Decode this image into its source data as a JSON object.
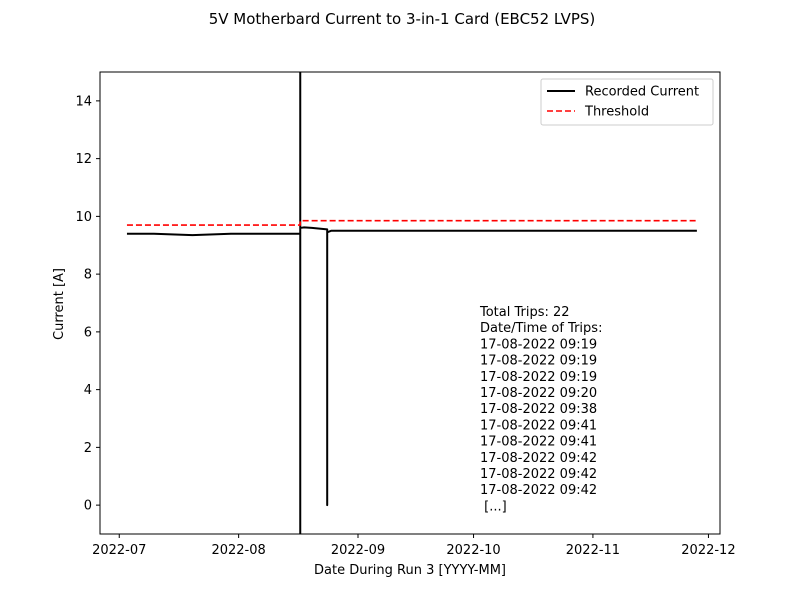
{
  "chart_data": {
    "type": "line",
    "title": "5V Motherbard Current to 3-in-1 Card (EBC52 LVPS)",
    "xlabel": "Date During Run 3 [YYYY-MM]",
    "ylabel": "Current [A]",
    "xlim": [
      "2022-06-26",
      "2022-12-04"
    ],
    "ylim": [
      -1,
      15
    ],
    "x_ticks": [
      "2022-07-01",
      "2022-08-01",
      "2022-09-01",
      "2022-10-01",
      "2022-11-01",
      "2022-12-01"
    ],
    "x_tick_labels": [
      "2022-07",
      "2022-08",
      "2022-09",
      "2022-10",
      "2022-11",
      "2022-12"
    ],
    "y_ticks": [
      0,
      2,
      4,
      6,
      8,
      10,
      12,
      14
    ],
    "y_tick_labels": [
      "0",
      "2",
      "4",
      "6",
      "8",
      "10",
      "12",
      "14"
    ],
    "grid": false,
    "legend_position": "top-right",
    "series": [
      {
        "name": "Recorded Current",
        "color": "#000000",
        "style": "solid",
        "x": [
          "2022-07-03",
          "2022-07-10",
          "2022-07-20",
          "2022-07-30",
          "2022-08-08",
          "2022-08-17",
          "2022-08-17",
          "2022-08-17",
          "2022-08-17",
          "2022-08-18",
          "2022-08-20",
          "2022-08-24",
          "2022-08-24",
          "2022-08-24",
          "2022-08-25",
          "2022-09-05",
          "2022-09-20",
          "2022-10-10",
          "2022-10-25",
          "2022-11-10",
          "2022-11-28"
        ],
        "y": [
          9.4,
          9.4,
          9.35,
          9.4,
          9.4,
          9.4,
          15,
          -1,
          9.6,
          9.62,
          9.6,
          9.55,
          0,
          9.45,
          9.5,
          9.5,
          9.5,
          9.5,
          9.5,
          9.5,
          9.5
        ]
      },
      {
        "name": "Threshold",
        "color": "#ff0000",
        "style": "dashed",
        "x": [
          "2022-07-03",
          "2022-08-17",
          "2022-08-17",
          "2022-11-28"
        ],
        "y": [
          9.7,
          9.7,
          9.85,
          9.85
        ]
      }
    ],
    "annotation": {
      "lines": [
        "Total Trips: 22",
        "Date/Time of Trips:",
        "17-08-2022 09:19",
        "17-08-2022 09:19",
        "17-08-2022 09:19",
        "17-08-2022 09:20",
        "17-08-2022 09:38",
        "17-08-2022 09:41",
        "17-08-2022 09:41",
        "17-08-2022 09:42",
        "17-08-2022 09:42",
        "17-08-2022 09:42",
        " [...]"
      ]
    }
  }
}
